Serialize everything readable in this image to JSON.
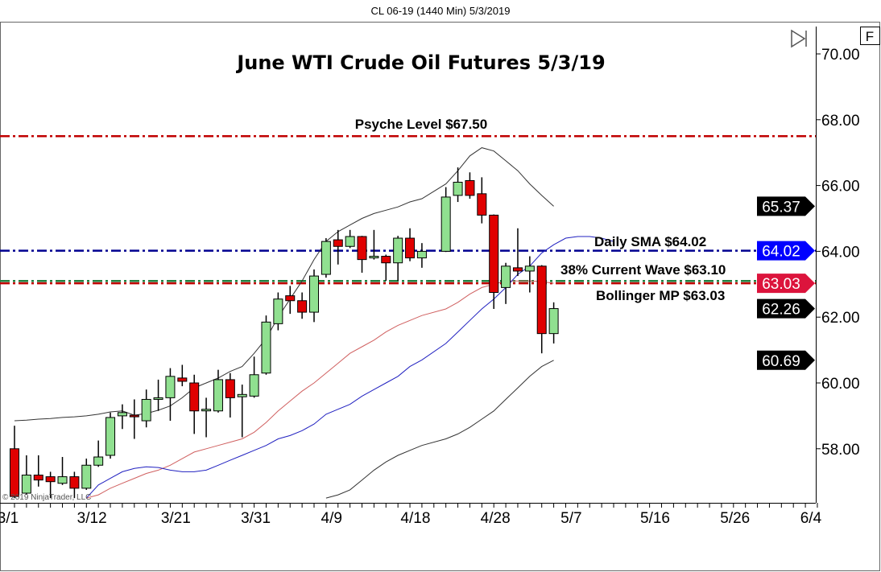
{
  "window_title": "CL 06-19 (1440 Min)  5/3/2019",
  "copyright": "© 2019 NinjaTrader, LLC",
  "buttons": {
    "fit_label": "F",
    "scroll_end_icon": "play-to-end-icon"
  },
  "colors": {
    "up": "#90e090",
    "down": "#e00000",
    "upper_band": "#333333",
    "middle_band": "#d06060",
    "sma": "#2020c0",
    "psyche": "#c00000",
    "sma_level": "#000090",
    "wave": "#208040",
    "bollinger_mp": "#c00000",
    "tag_blue": "#0000ff",
    "tag_red": "#dc143c",
    "tag_black": "#000000"
  },
  "chart_data": {
    "type": "candlestick",
    "title": "June WTI Crude Oil Futures 5/3/19",
    "ylim": [
      56.5,
      70.9
    ],
    "yticks": [
      "70.00",
      "68.00",
      "66.00",
      "64.00",
      "62.00",
      "60.00",
      "58.00"
    ],
    "xticks": [
      "3/1",
      "3/12",
      "3/21",
      "3/31",
      "4/9",
      "4/18",
      "4/28",
      "5/7",
      "5/16",
      "5/26",
      "6/4"
    ],
    "candles": {
      "dates": [
        "3/1",
        "3/4",
        "3/5",
        "3/6",
        "3/7",
        "3/8",
        "3/11",
        "3/12",
        "3/13",
        "3/14",
        "3/15",
        "3/18",
        "3/19",
        "3/20",
        "3/21",
        "3/22",
        "3/25",
        "3/26",
        "3/27",
        "3/28",
        "3/29",
        "4/1",
        "4/2",
        "4/3",
        "4/4",
        "4/5",
        "4/8",
        "4/9",
        "4/10",
        "4/11",
        "4/12",
        "4/15",
        "4/16",
        "4/17",
        "4/18",
        "4/22",
        "4/23",
        "4/24",
        "4/25",
        "4/26",
        "4/29",
        "4/30",
        "5/1",
        "5/2",
        "5/3"
      ],
      "open": [
        58.0,
        56.65,
        57.2,
        57.15,
        56.95,
        57.15,
        56.8,
        57.5,
        57.8,
        59.0,
        59.02,
        58.85,
        59.5,
        59.55,
        60.15,
        60.0,
        59.2,
        59.15,
        60.1,
        59.58,
        59.6,
        60.3,
        61.8,
        62.65,
        62.5,
        62.15,
        63.3,
        64.35,
        64.15,
        64.45,
        63.8,
        63.85,
        63.65,
        64.4,
        63.8,
        64.0,
        65.7,
        66.15,
        65.75,
        65.1,
        62.9,
        63.5,
        63.4,
        63.55,
        61.5
      ],
      "high": [
        58.7,
        57.8,
        57.8,
        57.3,
        57.75,
        57.3,
        57.7,
        58.25,
        59.1,
        59.35,
        59.5,
        59.8,
        60.1,
        60.45,
        60.55,
        60.25,
        59.55,
        60.4,
        60.3,
        59.95,
        60.8,
        62.05,
        62.75,
        62.95,
        62.75,
        63.45,
        64.4,
        64.65,
        64.65,
        64.47,
        64.65,
        63.9,
        64.47,
        64.7,
        64.25,
        65.95,
        66.55,
        66.4,
        66.25,
        65.12,
        63.65,
        64.7,
        63.85,
        63.58,
        62.45
      ],
      "low": [
        56.5,
        56.6,
        56.85,
        56.5,
        56.9,
        56.5,
        56.75,
        57.45,
        57.7,
        58.6,
        58.3,
        58.65,
        59.15,
        58.85,
        59.9,
        58.45,
        58.35,
        59.1,
        58.95,
        58.35,
        59.55,
        60.25,
        61.6,
        62.1,
        61.95,
        61.85,
        63.2,
        63.6,
        64.1,
        63.35,
        63.75,
        63.1,
        63.1,
        63.7,
        63.5,
        63.98,
        65.5,
        65.6,
        64.85,
        62.25,
        62.4,
        63.25,
        62.75,
        60.9,
        61.2
      ],
      "close": [
        56.55,
        57.2,
        57.05,
        57.0,
        57.15,
        56.8,
        57.5,
        57.75,
        58.95,
        59.1,
        59.0,
        59.5,
        59.55,
        60.2,
        60.05,
        59.15,
        59.2,
        60.1,
        59.55,
        59.65,
        60.25,
        61.85,
        62.55,
        62.5,
        62.15,
        63.25,
        64.3,
        64.15,
        64.45,
        63.75,
        63.85,
        63.65,
        64.4,
        63.8,
        64.0,
        65.65,
        66.1,
        65.7,
        65.1,
        62.75,
        63.55,
        63.4,
        63.55,
        61.5,
        62.26
      ]
    },
    "series": [
      {
        "key": "upper_band",
        "dates": [
          "3/1",
          "3/4",
          "3/5",
          "3/6",
          "3/7",
          "3/8",
          "3/11",
          "3/12",
          "3/13",
          "3/14",
          "3/15",
          "3/18",
          "3/19",
          "3/20",
          "3/21",
          "3/22",
          "3/25",
          "3/26",
          "3/27",
          "3/28",
          "3/29",
          "4/1",
          "4/2",
          "4/3",
          "4/4",
          "4/5",
          "4/8",
          "4/9",
          "4/10",
          "4/11",
          "4/12",
          "4/15",
          "4/16",
          "4/17",
          "4/18",
          "4/22",
          "4/23",
          "4/24",
          "4/25",
          "4/26",
          "4/29",
          "4/30",
          "5/1",
          "5/2",
          "5/3"
        ],
        "values": [
          58.85,
          58.87,
          58.9,
          58.92,
          58.95,
          58.97,
          59.0,
          59.05,
          59.12,
          59.15,
          59.02,
          59.07,
          59.17,
          59.3,
          59.55,
          59.85,
          60.0,
          60.15,
          60.35,
          60.5,
          60.9,
          61.35,
          62.0,
          62.55,
          63.1,
          63.75,
          64.3,
          64.6,
          64.8,
          65.0,
          65.15,
          65.25,
          65.35,
          65.5,
          65.6,
          66.05,
          66.45,
          66.9,
          67.15,
          67.05,
          66.75,
          66.45,
          66.05,
          65.7,
          65.37
        ]
      },
      {
        "key": "middle_band",
        "dates": [
          "3/11",
          "3/12",
          "3/13",
          "3/14",
          "3/15",
          "3/18",
          "3/19",
          "3/20",
          "3/21",
          "3/22",
          "3/25",
          "3/26",
          "3/27",
          "3/28",
          "3/29",
          "4/1",
          "4/2",
          "4/3",
          "4/4",
          "4/5",
          "4/8",
          "4/9",
          "4/10",
          "4/11",
          "4/12",
          "4/15",
          "4/16",
          "4/17",
          "4/18",
          "4/22",
          "4/23",
          "4/24",
          "4/25",
          "4/26",
          "4/29",
          "4/30",
          "5/1",
          "5/2",
          "5/3"
        ],
        "values": [
          56.5,
          56.6,
          56.8,
          56.95,
          57.1,
          57.25,
          57.35,
          57.5,
          57.7,
          57.9,
          58.0,
          58.1,
          58.2,
          58.3,
          58.5,
          58.8,
          59.15,
          59.45,
          59.75,
          60.0,
          60.3,
          60.6,
          60.9,
          61.1,
          61.3,
          61.55,
          61.75,
          61.9,
          62.05,
          62.25,
          62.45,
          62.7,
          62.9,
          63.0,
          63.1,
          63.1,
          63.1,
          63.08,
          63.03
        ]
      },
      {
        "key": "lower_band",
        "dates": [
          "4/8",
          "4/9",
          "4/10",
          "4/11",
          "4/12",
          "4/15",
          "4/16",
          "4/17",
          "4/18",
          "4/22",
          "4/23",
          "4/24",
          "4/25",
          "4/26",
          "4/29",
          "4/30",
          "5/1",
          "5/2",
          "5/3"
        ],
        "values": [
          56.5,
          56.6,
          56.75,
          57.05,
          57.35,
          57.6,
          57.8,
          57.95,
          58.1,
          58.3,
          58.45,
          58.65,
          58.9,
          59.15,
          59.5,
          59.85,
          60.2,
          60.5,
          60.69
        ]
      },
      {
        "key": "sma",
        "dates": [
          "3/11",
          "3/12",
          "3/13",
          "3/14",
          "3/15",
          "3/18",
          "3/19",
          "3/20",
          "3/21",
          "3/22",
          "3/25",
          "3/26",
          "3/27",
          "3/28",
          "3/29",
          "4/1",
          "4/2",
          "4/3",
          "4/4",
          "4/5",
          "4/8",
          "4/9",
          "4/10",
          "4/11",
          "4/12",
          "4/15",
          "4/16",
          "4/17",
          "4/18",
          "4/22",
          "4/23",
          "4/24",
          "4/25",
          "4/26",
          "4/29",
          "4/30",
          "5/1",
          "5/2",
          "5/3",
          "5/6",
          "5/7",
          "5/8",
          "5/9",
          "5/10"
        ],
        "values": [
          56.5,
          56.9,
          57.1,
          57.3,
          57.4,
          57.45,
          57.43,
          57.35,
          57.3,
          57.3,
          57.35,
          57.5,
          57.65,
          57.8,
          57.95,
          58.1,
          58.3,
          58.4,
          58.55,
          58.75,
          59.05,
          59.2,
          59.35,
          59.6,
          59.8,
          60.0,
          60.2,
          60.5,
          60.7,
          61.2,
          61.55,
          61.9,
          62.25,
          62.55,
          62.9,
          63.3,
          63.55,
          63.95,
          64.2,
          64.4,
          64.45,
          64.45,
          64.4,
          64.3
        ]
      }
    ],
    "levels": [
      {
        "key": "psyche",
        "label": "Psyche Level $67.50",
        "value": 67.5
      },
      {
        "key": "sma_level",
        "label": "Daily SMA $64.02",
        "value": 64.02
      },
      {
        "key": "wave",
        "label": "38% Current Wave $63.10",
        "value": 63.1
      },
      {
        "key": "bollinger_mp",
        "label": "Bollinger MP $63.03",
        "value": 63.03
      }
    ],
    "price_tags": [
      {
        "text": "65.37",
        "value": 65.37,
        "color": "#000000"
      },
      {
        "text": "64.02",
        "value": 64.02,
        "color": "#0000ff"
      },
      {
        "text": "63.03",
        "value": 63.03,
        "color": "#dc143c"
      },
      {
        "text": "62.26",
        "value": 62.26,
        "color": "#000000"
      },
      {
        "text": "60.69",
        "value": 60.69,
        "color": "#000000"
      }
    ]
  }
}
